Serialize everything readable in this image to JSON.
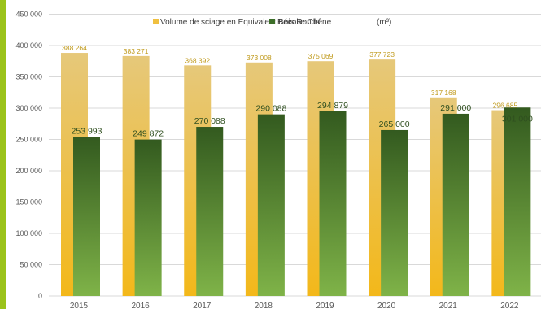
{
  "chart_data": {
    "type": "bar",
    "title": "",
    "xlabel": "",
    "ylabel": "",
    "unit_label": "(m³)",
    "ylim": [
      0,
      450000
    ],
    "yticks": [
      0,
      50000,
      100000,
      150000,
      200000,
      250000,
      300000,
      350000,
      400000,
      450000
    ],
    "ytick_labels": [
      "0",
      "50 000",
      "100 000",
      "150 000",
      "200 000",
      "250 000",
      "300 000",
      "350 000",
      "400 000",
      "450 000"
    ],
    "grid": true,
    "legend_position": "top",
    "categories": [
      "2015",
      "2016",
      "2017",
      "2018",
      "2019",
      "2020",
      "2021",
      "2022"
    ],
    "series": [
      {
        "name": "Volume de sciage en Equivalent Bois Ronds",
        "values": [
          388264,
          383271,
          368392,
          373008,
          375069,
          377723,
          317168,
          296685
        ],
        "labels": [
          "388 264",
          "383 271",
          "368 392",
          "373 008",
          "375 069",
          "377 723",
          "317 168",
          "296 685"
        ],
        "color_top": "#e6c87a",
        "color_bottom": "#f3b81a"
      },
      {
        "name": "Récolte Chêne",
        "values": [
          253993,
          249872,
          270088,
          290088,
          294879,
          265000,
          291000,
          301000
        ],
        "labels": [
          "253 993",
          "249 872",
          "270 088",
          "290 088",
          "294 879",
          "265 000",
          "291 000",
          "301 000"
        ],
        "color_top": "#335a1f",
        "color_bottom": "#7fb348"
      }
    ]
  }
}
